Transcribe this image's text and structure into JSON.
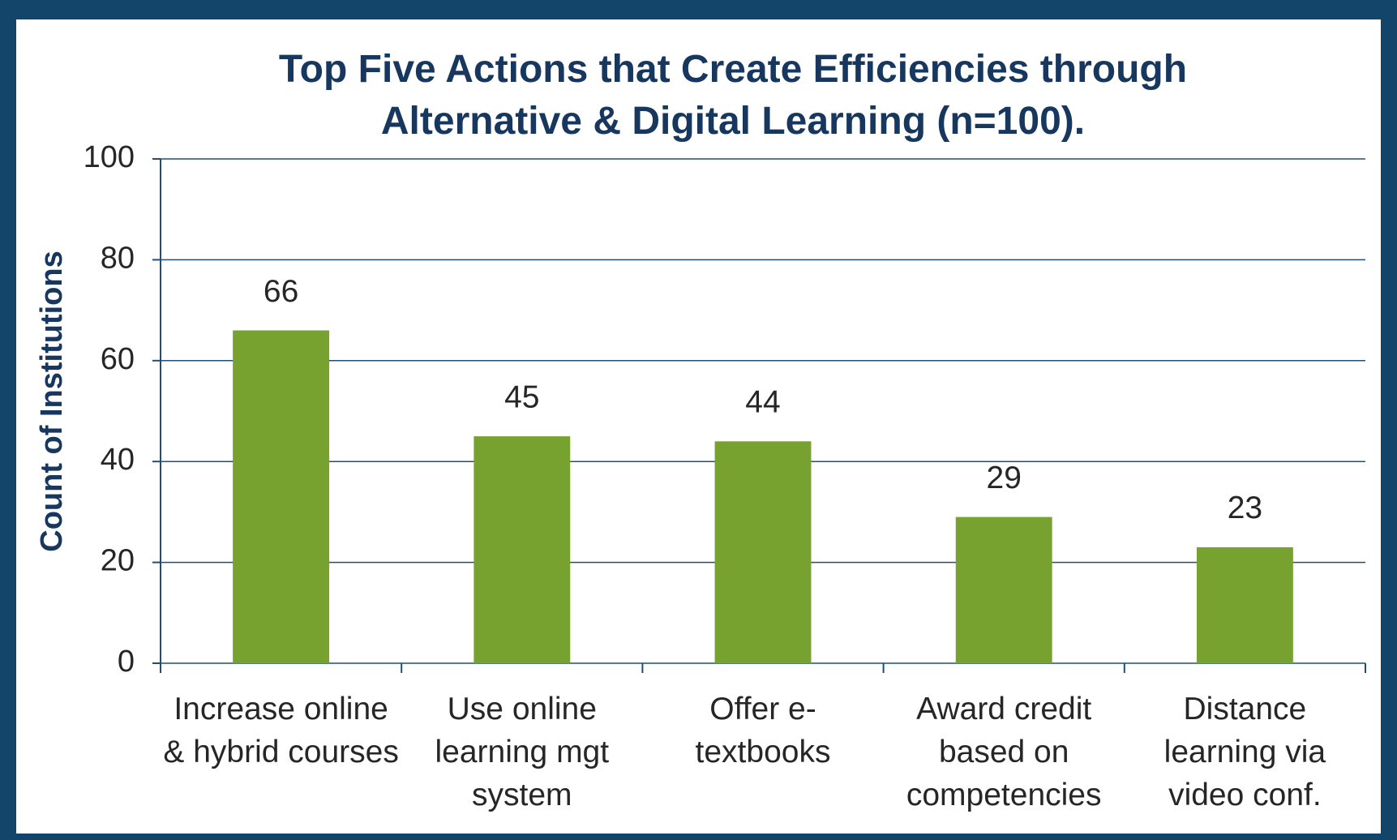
{
  "chart_data": {
    "type": "bar",
    "title": "Top Five Actions that Create Efficiencies through Alternative & Digital Learning (n=100).",
    "y_label": "Count of Institutions",
    "categories": [
      "Increase online & hybrid courses",
      "Use online learning mgt system",
      "Offer e-textbooks",
      "Award credit based on competencies",
      "Distance learning via video conf."
    ],
    "values": [
      66,
      45,
      44,
      29,
      23
    ],
    "color": "#77a22f",
    "ylim": [
      0,
      100
    ],
    "yticks": [
      0,
      20,
      40,
      60,
      80,
      100
    ],
    "grid": true
  }
}
